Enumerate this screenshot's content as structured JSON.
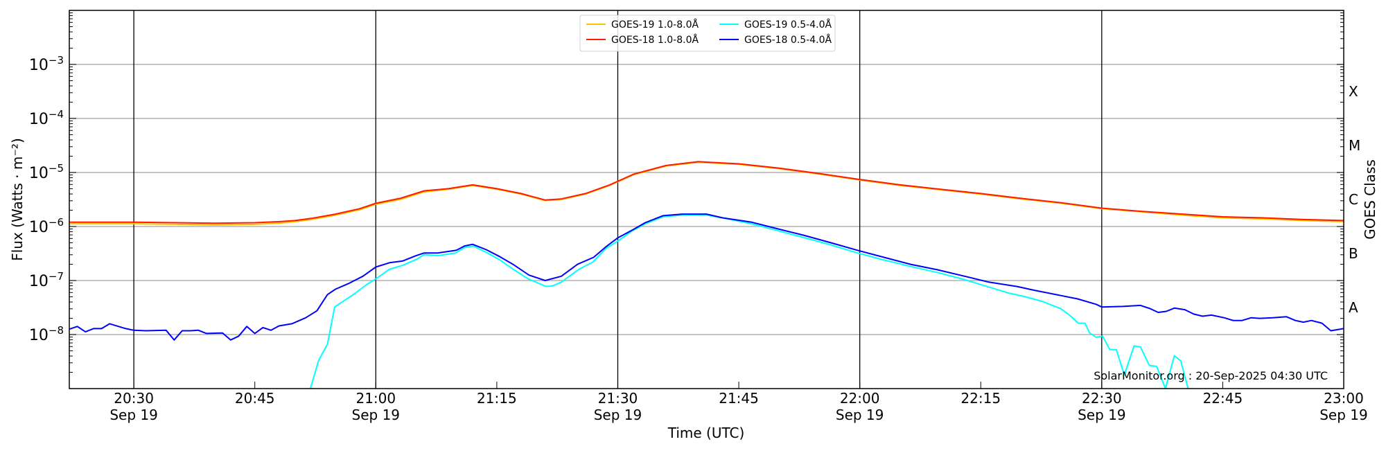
{
  "chart_data": {
    "type": "line",
    "title": "",
    "xlabel": "Time (UTC)",
    "ylabel": "Flux (Watts · m⁻²)",
    "y2label": "GOES Class",
    "yscale": "log",
    "x_units": "minutes after 20:00 UTC, Sep 19",
    "xlim": [
      22,
      180
    ],
    "ylim": [
      1e-09,
      0.01
    ],
    "grid": "horizontal at decades",
    "legend_placement": "top-center",
    "x_ticks": [
      {
        "t": 30,
        "time": "20:30",
        "date": "Sep 19"
      },
      {
        "t": 45,
        "time": "20:45",
        "date": ""
      },
      {
        "t": 60,
        "time": "21:00",
        "date": "Sep 19"
      },
      {
        "t": 75,
        "time": "21:15",
        "date": ""
      },
      {
        "t": 90,
        "time": "21:30",
        "date": "Sep 19"
      },
      {
        "t": 105,
        "time": "21:45",
        "date": ""
      },
      {
        "t": 120,
        "time": "22:00",
        "date": "Sep 19"
      },
      {
        "t": 135,
        "time": "22:15",
        "date": ""
      },
      {
        "t": 150,
        "time": "22:30",
        "date": "Sep 19"
      },
      {
        "t": 165,
        "time": "22:45",
        "date": ""
      },
      {
        "t": 180,
        "time": "23:00",
        "date": "Sep 19"
      }
    ],
    "vertical_lines_at": [
      30,
      60,
      90,
      120,
      150
    ],
    "y_ticks": [
      {
        "base": "10",
        "exp": "−8",
        "log10": -8
      },
      {
        "base": "10",
        "exp": "−7",
        "log10": -7
      },
      {
        "base": "10",
        "exp": "−6",
        "log10": -6
      },
      {
        "base": "10",
        "exp": "−5",
        "log10": -5
      },
      {
        "base": "10",
        "exp": "−4",
        "log10": -4
      },
      {
        "base": "10",
        "exp": "−3",
        "log10": -3
      }
    ],
    "goes_classes": [
      {
        "label": "A",
        "log10": -7.5
      },
      {
        "label": "B",
        "log10": -6.5
      },
      {
        "label": "C",
        "log10": -5.5
      },
      {
        "label": "M",
        "log10": -4.5
      },
      {
        "label": "X",
        "log10": -3.5
      }
    ],
    "series": [
      {
        "name": "GOES-19 1.0-8.0Å",
        "color": "#ffc000",
        "t": [
          22,
          30,
          35,
          40,
          45,
          48,
          50,
          52,
          55,
          58,
          60,
          63,
          66,
          69,
          72,
          75,
          78,
          81,
          83,
          86,
          89,
          92,
          96,
          100,
          105,
          110,
          115,
          120,
          125,
          130,
          135,
          140,
          145,
          150,
          155,
          160,
          165,
          170,
          175,
          180
        ],
        "log10_flux": [
          -5.95,
          -5.95,
          -5.96,
          -5.97,
          -5.96,
          -5.94,
          -5.91,
          -5.87,
          -5.79,
          -5.69,
          -5.59,
          -5.5,
          -5.36,
          -5.31,
          -5.24,
          -5.31,
          -5.4,
          -5.52,
          -5.5,
          -5.4,
          -5.24,
          -5.04,
          -4.88,
          -4.81,
          -4.85,
          -4.93,
          -5.03,
          -5.14,
          -5.24,
          -5.32,
          -5.4,
          -5.49,
          -5.57,
          -5.67,
          -5.73,
          -5.79,
          -5.84,
          -5.86,
          -5.89,
          -5.91
        ]
      },
      {
        "name": "GOES-18 1.0-8.0Å",
        "color": "#ff1a00",
        "t": [
          22,
          30,
          35,
          40,
          45,
          48,
          50,
          52,
          55,
          58,
          60,
          63,
          66,
          69,
          72,
          75,
          78,
          81,
          83,
          86,
          89,
          92,
          96,
          100,
          105,
          110,
          115,
          120,
          125,
          130,
          135,
          140,
          145,
          150,
          155,
          160,
          165,
          170,
          175,
          180
        ],
        "log10_flux": [
          -5.92,
          -5.92,
          -5.93,
          -5.94,
          -5.93,
          -5.91,
          -5.89,
          -5.85,
          -5.77,
          -5.67,
          -5.57,
          -5.48,
          -5.34,
          -5.3,
          -5.23,
          -5.3,
          -5.39,
          -5.51,
          -5.49,
          -5.39,
          -5.23,
          -5.03,
          -4.87,
          -4.8,
          -4.84,
          -4.92,
          -5.02,
          -5.13,
          -5.23,
          -5.31,
          -5.39,
          -5.48,
          -5.56,
          -5.66,
          -5.72,
          -5.77,
          -5.82,
          -5.84,
          -5.87,
          -5.89
        ]
      },
      {
        "name": "GOES-19 0.5-4.0Å",
        "color": "#00ffff",
        "t": [
          22,
          51.8,
          52.9,
          54,
          54.9,
          56.2,
          57.3,
          58.9,
          60,
          61.7,
          63.3,
          65,
          66,
          67.7,
          69.9,
          71,
          72.1,
          73.7,
          75.4,
          77,
          78.9,
          81.1,
          81.9,
          83,
          85.2,
          86.9,
          88.5,
          90.2,
          91.8,
          93.4,
          95.6,
          97.8,
          101.1,
          103.3,
          106.6,
          109.9,
          113.2,
          116.4,
          119.7,
          123,
          126.3,
          129.6,
          132.9,
          136.2,
          138.4,
          140.5,
          142.7,
          144.9,
          146,
          147.1,
          147.9,
          148.5,
          149.3,
          150.1,
          151,
          151.8,
          152.8,
          154,
          154.8,
          155.9,
          156.8,
          157.9,
          159,
          159.8,
          160.8,
          180
        ],
        "log10_flux": [
          -9.1,
          -9.05,
          -8.48,
          -8.18,
          -7.49,
          -7.36,
          -7.25,
          -7.07,
          -6.97,
          -6.79,
          -6.72,
          -6.61,
          -6.52,
          -6.54,
          -6.49,
          -6.39,
          -6.36,
          -6.48,
          -6.62,
          -6.79,
          -6.97,
          -7.11,
          -7.1,
          -7.03,
          -6.79,
          -6.66,
          -6.41,
          -6.25,
          -6.08,
          -5.95,
          -5.82,
          -5.79,
          -5.79,
          -5.85,
          -5.95,
          -6.08,
          -6.21,
          -6.34,
          -6.49,
          -6.62,
          -6.74,
          -6.85,
          -6.98,
          -7.13,
          -7.23,
          -7.3,
          -7.39,
          -7.52,
          -7.64,
          -7.79,
          -7.79,
          -7.97,
          -8.05,
          -8.03,
          -8.28,
          -8.28,
          -8.75,
          -8.21,
          -8.23,
          -8.57,
          -8.59,
          -9.0,
          -8.39,
          -8.49,
          -9.05,
          -9.1
        ]
      },
      {
        "name": "GOES-18 0.5-4.0Å",
        "color": "#0000ff",
        "t": [
          22,
          23,
          24,
          25,
          26,
          27,
          29,
          30,
          31.5,
          34,
          35,
          36,
          37,
          38,
          39,
          41,
          42,
          43,
          44,
          45,
          46,
          47,
          48,
          49.6,
          51.3,
          52.7,
          54,
          55,
          56.7,
          58.4,
          60,
          61.7,
          63.3,
          65,
          66,
          67.7,
          70,
          71,
          72,
          73.7,
          75.4,
          77,
          79,
          81,
          83,
          85,
          87,
          88.5,
          90,
          92,
          93.4,
          95.6,
          98,
          101,
          103,
          106.6,
          110,
          113,
          116.4,
          119.7,
          123,
          126.3,
          129.6,
          133,
          136,
          139.5,
          141.6,
          145,
          147,
          149.3,
          150,
          152.6,
          154.8,
          156,
          157,
          158,
          159,
          160.3,
          161.4,
          162.5,
          163.6,
          165.2,
          166.3,
          167.4,
          168.5,
          169.6,
          171.2,
          172.9,
          174,
          175,
          176,
          177.3,
          178.4,
          180
        ],
        "log10_flux": [
          -7.9,
          -7.85,
          -7.95,
          -7.89,
          -7.89,
          -7.8,
          -7.89,
          -7.92,
          -7.93,
          -7.92,
          -8.1,
          -7.93,
          -7.93,
          -7.92,
          -7.98,
          -7.97,
          -8.1,
          -8.03,
          -7.85,
          -7.98,
          -7.87,
          -7.92,
          -7.84,
          -7.8,
          -7.69,
          -7.56,
          -7.26,
          -7.16,
          -7.05,
          -6.92,
          -6.75,
          -6.67,
          -6.64,
          -6.54,
          -6.49,
          -6.49,
          -6.44,
          -6.36,
          -6.33,
          -6.43,
          -6.56,
          -6.7,
          -6.9,
          -7.0,
          -6.92,
          -6.7,
          -6.57,
          -6.38,
          -6.21,
          -6.05,
          -5.93,
          -5.8,
          -5.77,
          -5.77,
          -5.84,
          -5.92,
          -6.05,
          -6.16,
          -6.3,
          -6.44,
          -6.57,
          -6.7,
          -6.8,
          -6.92,
          -7.03,
          -7.11,
          -7.18,
          -7.28,
          -7.34,
          -7.44,
          -7.49,
          -7.48,
          -7.46,
          -7.52,
          -7.59,
          -7.57,
          -7.51,
          -7.54,
          -7.62,
          -7.66,
          -7.64,
          -7.69,
          -7.74,
          -7.74,
          -7.69,
          -7.7,
          -7.69,
          -7.67,
          -7.74,
          -7.77,
          -7.74,
          -7.79,
          -7.93,
          -7.89
        ]
      }
    ],
    "legend_order": [
      0,
      1,
      2,
      3
    ],
    "annotation": "SolarMonitor.org : 20-Sep-2025 04:30 UTC"
  }
}
